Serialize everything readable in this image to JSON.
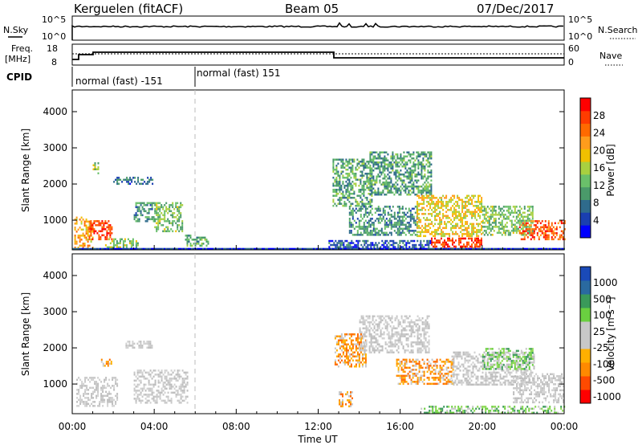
{
  "header": {
    "station": "Kerguelen (fitACF)",
    "beam": "Beam 05",
    "date": "07/Dec/2017"
  },
  "noise_panel": {
    "left_label": "N.Sky",
    "right_label": "N.Search",
    "left_ticks": [
      "10^5",
      "10^0"
    ],
    "right_ticks": [
      "10^5",
      "10^0"
    ]
  },
  "freq_panel": {
    "left_label_top": "Freq.",
    "left_label_bottom": "[MHz]",
    "right_label": "Nave",
    "left_ticks": [
      "18",
      "8"
    ],
    "right_ticks": [
      "60",
      "0"
    ]
  },
  "cpid_panel": {
    "label": "CPID",
    "segments": [
      {
        "start_hour": 0,
        "end_hour": 6,
        "text": "normal (fast) -151"
      },
      {
        "start_hour": 6,
        "end_hour": 24,
        "text": "normal (fast) 151"
      }
    ]
  },
  "colors": {
    "power_scale": [
      "#0000ff",
      "#1a3fb0",
      "#2f6b8c",
      "#4a9a6a",
      "#6ac06a",
      "#a8d040",
      "#f0c000",
      "#ff9c1c",
      "#ff6a00",
      "#ff3c00",
      "#ff0000"
    ],
    "velocity_scale": [
      "#ff0000",
      "#ff4a00",
      "#ff8a00",
      "#ffb000",
      "#c8c8c8",
      "#c8c8c8",
      "#6ad040",
      "#3a9a5a",
      "#2a6aa0",
      "#1a4ab8"
    ],
    "ground_scatter": "#bdbdbd"
  },
  "chart_data": [
    {
      "type": "heatmap",
      "name_field": "Power",
      "xlabel": "",
      "ylabel": "Slant Range [km]",
      "xlim": [
        0,
        24
      ],
      "ylim": [
        180,
        4600
      ],
      "yticks": [
        1000,
        2000,
        3000,
        4000
      ],
      "colorbar": {
        "title": "Power [dB]",
        "range": [
          0,
          32
        ],
        "tick_values": [
          4,
          8,
          12,
          16,
          20,
          24,
          28
        ],
        "tick_labels": [
          "4",
          "8",
          "12",
          "16",
          "20",
          "24",
          "28"
        ]
      },
      "regions": [
        {
          "t0": 0.1,
          "t1": 1.0,
          "r0": 250,
          "r1": 1100,
          "val": 22
        },
        {
          "t0": 0.8,
          "t1": 1.9,
          "r0": 500,
          "r1": 1000,
          "val": 29
        },
        {
          "t0": 1.6,
          "t1": 3.2,
          "r0": 230,
          "r1": 500,
          "val": 14
        },
        {
          "t0": 3.0,
          "t1": 4.0,
          "r0": 950,
          "r1": 1500,
          "val": 9
        },
        {
          "t0": 4.0,
          "t1": 5.4,
          "r0": 700,
          "r1": 1500,
          "val": 13
        },
        {
          "t0": 5.5,
          "t1": 6.6,
          "r0": 300,
          "r1": 600,
          "val": 12
        },
        {
          "t0": 2.0,
          "t1": 3.9,
          "r0": 2000,
          "r1": 2200,
          "val": 6
        },
        {
          "t0": 1.0,
          "t1": 1.3,
          "r0": 2300,
          "r1": 2600,
          "val": 15
        },
        {
          "t0": 12.7,
          "t1": 14.6,
          "r0": 1400,
          "r1": 2700,
          "val": 11
        },
        {
          "t0": 14.5,
          "t1": 17.5,
          "r0": 1700,
          "r1": 2900,
          "val": 10
        },
        {
          "t0": 13.5,
          "t1": 16.8,
          "r0": 600,
          "r1": 1400,
          "val": 9
        },
        {
          "t0": 16.8,
          "t1": 20.0,
          "r0": 550,
          "r1": 1700,
          "val": 19
        },
        {
          "t0": 17.5,
          "t1": 20.0,
          "r0": 230,
          "r1": 520,
          "val": 29
        },
        {
          "t0": 20.0,
          "t1": 22.5,
          "r0": 600,
          "r1": 1400,
          "val": 13
        },
        {
          "t0": 21.8,
          "t1": 24.0,
          "r0": 500,
          "r1": 1000,
          "val": 27
        },
        {
          "t0": 12.5,
          "t1": 17.5,
          "r0": 200,
          "r1": 450,
          "val": 5
        },
        {
          "t0": 0.0,
          "t1": 24.0,
          "r0": 180,
          "r1": 230,
          "val": 3
        }
      ]
    },
    {
      "type": "heatmap",
      "name_field": "Velocity",
      "xlabel": "Time UT",
      "ylabel": "Slant Range [km]",
      "xlim": [
        0,
        24
      ],
      "ylim": [
        180,
        4600
      ],
      "yticks": [
        1000,
        2000,
        3000,
        4000
      ],
      "xtick_labels": [
        "00:00",
        "04:00",
        "08:00",
        "12:00",
        "16:00",
        "20:00",
        "00:00"
      ],
      "colorbar": {
        "title": "Velocity [m s⁻¹]",
        "tick_labels": [
          "1000",
          "500",
          "100",
          "25",
          "-25",
          "-100",
          "-500",
          "-1000"
        ]
      },
      "regions": [
        {
          "t0": 0.2,
          "t1": 2.2,
          "r0": 400,
          "r1": 1200,
          "cls": "gs"
        },
        {
          "t0": 3.0,
          "t1": 5.6,
          "r0": 500,
          "r1": 1400,
          "cls": "gs"
        },
        {
          "t0": 1.4,
          "t1": 1.9,
          "r0": 1500,
          "r1": 1700,
          "cls": "orange"
        },
        {
          "t0": 2.6,
          "t1": 3.9,
          "r0": 2000,
          "r1": 2200,
          "cls": "gs"
        },
        {
          "t0": 12.8,
          "t1": 14.3,
          "r0": 1500,
          "r1": 2400,
          "cls": "orange"
        },
        {
          "t0": 14.0,
          "t1": 17.4,
          "r0": 1900,
          "r1": 2900,
          "cls": "gs"
        },
        {
          "t0": 15.8,
          "t1": 18.6,
          "r0": 1000,
          "r1": 1700,
          "cls": "orange"
        },
        {
          "t0": 18.5,
          "t1": 22.5,
          "r0": 1000,
          "r1": 1900,
          "cls": "gs"
        },
        {
          "t0": 20.0,
          "t1": 22.5,
          "r0": 1400,
          "r1": 2000,
          "cls": "green"
        },
        {
          "t0": 13.0,
          "t1": 13.7,
          "r0": 400,
          "r1": 800,
          "cls": "orange"
        },
        {
          "t0": 17.0,
          "t1": 24.0,
          "r0": 200,
          "r1": 400,
          "cls": "green"
        },
        {
          "t0": 21.5,
          "t1": 24.0,
          "r0": 500,
          "r1": 1300,
          "cls": "gs"
        }
      ]
    }
  ]
}
